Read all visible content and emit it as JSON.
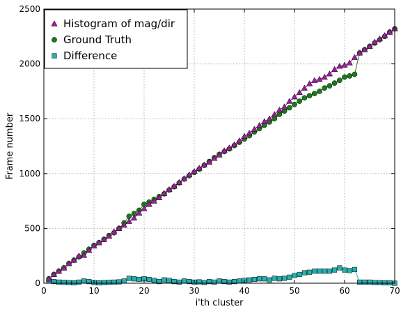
{
  "chart_data": {
    "type": "line",
    "xlabel": "i'th cluster",
    "ylabel": "Frame number",
    "xlim": [
      0,
      70
    ],
    "ylim": [
      0,
      2500
    ],
    "xticks": [
      0,
      10,
      20,
      30,
      40,
      50,
      60,
      70
    ],
    "yticks": [
      0,
      500,
      1000,
      1500,
      2000,
      2500
    ],
    "grid": true,
    "legend_position": "top-left",
    "series": [
      {
        "name": "Histogram of mag/dir",
        "marker": "triangle",
        "color": "#9b1f9b",
        "x": [
          1,
          2,
          3,
          4,
          5,
          6,
          7,
          8,
          9,
          10,
          11,
          12,
          13,
          14,
          15,
          16,
          17,
          18,
          19,
          20,
          21,
          22,
          23,
          24,
          25,
          26,
          27,
          28,
          29,
          30,
          31,
          32,
          33,
          34,
          35,
          36,
          37,
          38,
          39,
          40,
          41,
          42,
          43,
          44,
          45,
          46,
          47,
          48,
          49,
          50,
          51,
          52,
          53,
          54,
          55,
          56,
          57,
          58,
          59,
          60,
          61,
          62,
          63,
          64,
          65,
          66,
          67,
          68,
          69,
          70
        ],
        "values": [
          40,
          80,
          110,
          140,
          180,
          210,
          250,
          255,
          300,
          340,
          370,
          400,
          430,
          470,
          500,
          530,
          565,
          595,
          640,
          680,
          720,
          750,
          780,
          820,
          855,
          885,
          920,
          955,
          990,
          1020,
          1050,
          1080,
          1105,
          1140,
          1170,
          1210,
          1235,
          1265,
          1300,
          1340,
          1370,
          1405,
          1440,
          1475,
          1500,
          1540,
          1580,
          1610,
          1660,
          1700,
          1740,
          1780,
          1820,
          1850,
          1860,
          1880,
          1910,
          1950,
          1980,
          1990,
          2010,
          2060,
          2100,
          2130,
          2160,
          2200,
          2230,
          2260,
          2290,
          2320
        ]
      },
      {
        "name": "Ground Truth",
        "marker": "circle",
        "color": "#1b7a1b",
        "x": [
          1,
          2,
          3,
          4,
          5,
          6,
          7,
          8,
          9,
          10,
          11,
          12,
          13,
          14,
          15,
          16,
          17,
          18,
          19,
          20,
          21,
          22,
          23,
          24,
          25,
          26,
          27,
          28,
          29,
          30,
          31,
          32,
          33,
          34,
          35,
          36,
          37,
          38,
          39,
          40,
          41,
          42,
          43,
          44,
          45,
          46,
          47,
          48,
          49,
          50,
          51,
          52,
          53,
          54,
          55,
          56,
          57,
          58,
          59,
          60,
          61,
          62,
          63,
          64,
          65,
          66,
          67,
          68,
          69,
          70
        ],
        "values": [
          40,
          80,
          110,
          140,
          180,
          210,
          240,
          275,
          310,
          345,
          370,
          400,
          435,
          460,
          500,
          550,
          610,
          635,
          665,
          720,
          740,
          765,
          790,
          815,
          850,
          880,
          915,
          950,
          980,
          1010,
          1040,
          1075,
          1110,
          1145,
          1175,
          1200,
          1225,
          1255,
          1285,
          1315,
          1345,
          1380,
          1410,
          1440,
          1470,
          1500,
          1540,
          1570,
          1600,
          1630,
          1660,
          1690,
          1710,
          1730,
          1750,
          1780,
          1800,
          1825,
          1850,
          1880,
          1890,
          1905,
          2100,
          2130,
          2160,
          2190,
          2220,
          2250,
          2290,
          2320
        ]
      },
      {
        "name": "Difference",
        "marker": "square",
        "color": "#27b0b0",
        "x": [
          1,
          2,
          3,
          4,
          5,
          6,
          7,
          8,
          9,
          10,
          11,
          12,
          13,
          14,
          15,
          16,
          17,
          18,
          19,
          20,
          21,
          22,
          23,
          24,
          25,
          26,
          27,
          28,
          29,
          30,
          31,
          32,
          33,
          34,
          35,
          36,
          37,
          38,
          39,
          40,
          41,
          42,
          43,
          44,
          45,
          46,
          47,
          48,
          49,
          50,
          51,
          52,
          53,
          54,
          55,
          56,
          57,
          58,
          59,
          60,
          61,
          62,
          63,
          64,
          65,
          66,
          67,
          68,
          69,
          70
        ],
        "values": [
          20,
          15,
          10,
          8,
          5,
          3,
          10,
          20,
          15,
          5,
          3,
          5,
          8,
          10,
          12,
          20,
          45,
          40,
          35,
          40,
          35,
          25,
          15,
          30,
          25,
          15,
          10,
          20,
          15,
          10,
          12,
          5,
          15,
          10,
          20,
          15,
          10,
          15,
          20,
          25,
          30,
          35,
          40,
          40,
          30,
          45,
          40,
          45,
          55,
          70,
          80,
          95,
          100,
          110,
          110,
          110,
          110,
          120,
          140,
          120,
          115,
          125,
          10,
          10,
          10,
          5,
          5,
          3,
          3,
          0
        ]
      }
    ]
  }
}
